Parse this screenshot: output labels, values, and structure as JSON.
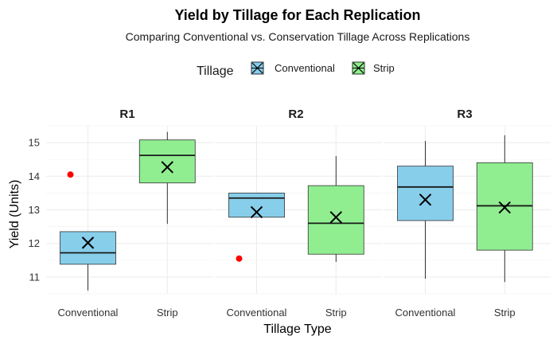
{
  "chart_data": {
    "type": "boxplot",
    "title": "Yield by Tillage for Each Replication",
    "subtitle": "Comparing Conventional vs. Conservation Tillage Across Replications",
    "xlabel": "Tillage Type",
    "ylabel": "Yield (Units)",
    "ylim": [
      10.5,
      15.5
    ],
    "yticks": [
      11,
      12,
      13,
      14,
      15
    ],
    "legend": {
      "title": "Tillage",
      "position": "top",
      "entries": [
        {
          "name": "Conventional",
          "color": "#87ceeb"
        },
        {
          "name": "Strip",
          "color": "#90ee90"
        }
      ]
    },
    "categories": [
      "Conventional",
      "Strip"
    ],
    "colors": {
      "Conventional": "#87ceeb",
      "Strip": "#90ee90",
      "outlier": "#ff0000"
    },
    "panels": [
      {
        "name": "R1",
        "boxes": [
          {
            "category": "Conventional",
            "min": 10.6,
            "q1": 11.38,
            "median": 11.72,
            "q3": 12.35,
            "max": 12.35,
            "mean": 12.02,
            "outliers": [
              14.05
            ]
          },
          {
            "category": "Strip",
            "min": 12.58,
            "q1": 13.8,
            "median": 14.62,
            "q3": 15.08,
            "max": 15.32,
            "mean": 14.27,
            "outliers": []
          }
        ]
      },
      {
        "name": "R2",
        "boxes": [
          {
            "category": "Conventional",
            "min": 12.78,
            "q1": 12.78,
            "median": 13.35,
            "q3": 13.5,
            "max": 13.5,
            "mean": 12.93,
            "outliers": [
              11.55
            ]
          },
          {
            "category": "Strip",
            "min": 11.45,
            "q1": 11.68,
            "median": 12.6,
            "q3": 13.72,
            "max": 14.6,
            "mean": 12.78,
            "outliers": []
          }
        ]
      },
      {
        "name": "R3",
        "boxes": [
          {
            "category": "Conventional",
            "min": 10.95,
            "q1": 12.68,
            "median": 13.68,
            "q3": 14.3,
            "max": 15.05,
            "mean": 13.3,
            "outliers": []
          },
          {
            "category": "Strip",
            "min": 10.85,
            "q1": 11.8,
            "median": 13.12,
            "q3": 14.4,
            "max": 15.22,
            "mean": 13.07,
            "outliers": []
          }
        ]
      }
    ]
  }
}
